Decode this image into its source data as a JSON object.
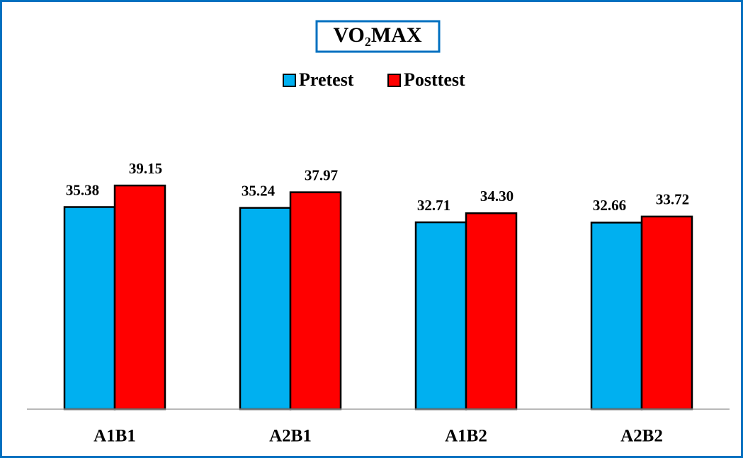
{
  "chart_data": {
    "type": "bar",
    "title": "VO₂MAX",
    "categories": [
      "A1B1",
      "A2B1",
      "A1B2",
      "A2B2"
    ],
    "series": [
      {
        "name": "Pretest",
        "color": "#00b0f0",
        "values": [
          35.38,
          35.24,
          32.71,
          32.66
        ],
        "value_labels": [
          "35.38",
          "35.24",
          "32.71",
          "32.66"
        ]
      },
      {
        "name": "Posttest",
        "color": "#ff0000",
        "values": [
          39.15,
          37.97,
          34.3,
          33.72
        ],
        "value_labels": [
          "39.15",
          "37.97",
          "34.30",
          "33.72"
        ]
      }
    ],
    "ylim": [
      0,
      45
    ],
    "legend": "top"
  }
}
